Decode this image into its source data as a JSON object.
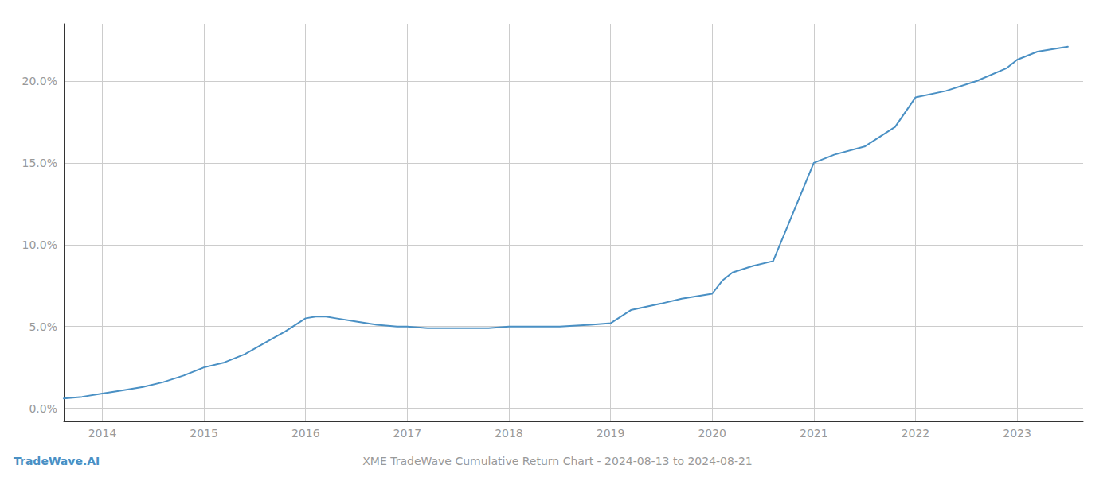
{
  "chart_data": {
    "type": "line",
    "title": "XME TradeWave Cumulative Return Chart - 2024-08-13 to 2024-08-21",
    "annotations": [
      {
        "text": "TradeWave.AI"
      }
    ],
    "color": "#4a90c4",
    "x": [
      2013.62,
      2013.8,
      2014.0,
      2014.2,
      2014.4,
      2014.6,
      2014.8,
      2015.0,
      2015.2,
      2015.4,
      2015.6,
      2015.8,
      2016.0,
      2016.1,
      2016.2,
      2016.3,
      2016.5,
      2016.7,
      2016.9,
      2017.0,
      2017.2,
      2017.5,
      2017.8,
      2018.0,
      2018.2,
      2018.5,
      2018.8,
      2019.0,
      2019.2,
      2019.5,
      2019.7,
      2020.0,
      2020.1,
      2020.2,
      2020.4,
      2020.6,
      2021.0,
      2021.2,
      2021.5,
      2021.8,
      2022.0,
      2022.3,
      2022.6,
      2022.9,
      2023.0,
      2023.2,
      2023.5
    ],
    "values": [
      0.006,
      0.007,
      0.009,
      0.011,
      0.013,
      0.016,
      0.02,
      0.025,
      0.028,
      0.033,
      0.04,
      0.047,
      0.055,
      0.056,
      0.056,
      0.055,
      0.053,
      0.051,
      0.05,
      0.05,
      0.049,
      0.049,
      0.049,
      0.05,
      0.05,
      0.05,
      0.051,
      0.052,
      0.06,
      0.064,
      0.067,
      0.07,
      0.078,
      0.083,
      0.087,
      0.09,
      0.15,
      0.155,
      0.16,
      0.172,
      0.19,
      0.194,
      0.2,
      0.208,
      0.213,
      0.218,
      0.221
    ],
    "xlim": [
      2013.62,
      2023.65
    ],
    "ylim": [
      -0.008,
      0.235
    ],
    "xticks": [
      2014,
      2015,
      2016,
      2017,
      2018,
      2019,
      2020,
      2021,
      2022,
      2023
    ],
    "yticks": [
      {
        "value": 0.0,
        "label": "0.0%"
      },
      {
        "value": 0.05,
        "label": "5.0%"
      },
      {
        "value": 0.1,
        "label": "10.0%"
      },
      {
        "value": 0.15,
        "label": "15.0%"
      },
      {
        "value": 0.2,
        "label": "20.0%"
      }
    ],
    "grid": true
  }
}
